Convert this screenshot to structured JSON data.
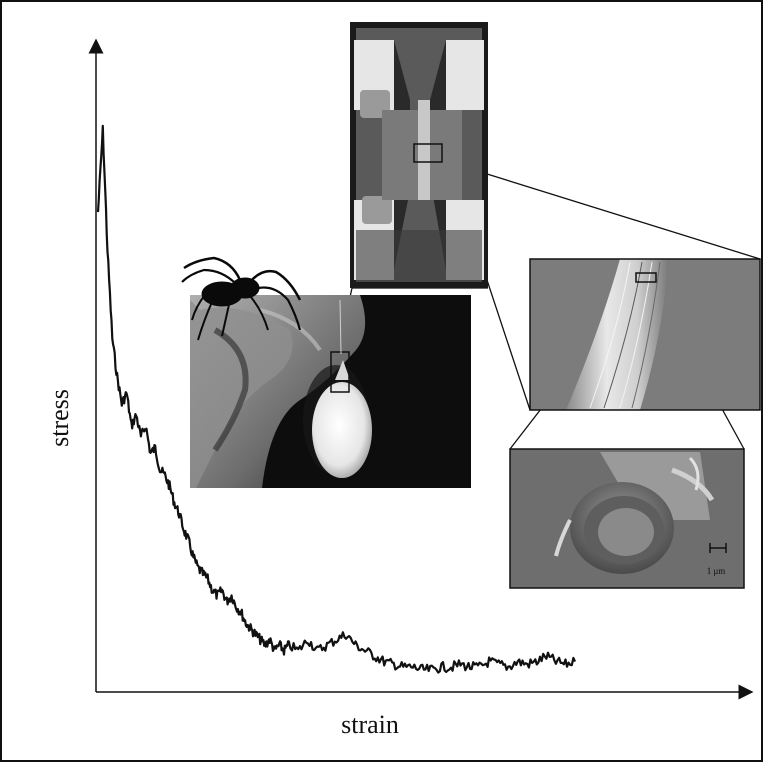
{
  "figure": {
    "x_axis_label": "strain",
    "y_axis_label": "stress",
    "scale_bar_label": "1 μm"
  },
  "chart_data": {
    "type": "line",
    "xlabel": "strain",
    "ylabel": "stress",
    "series": [
      {
        "x": [
          0.0,
          0.01,
          0.02,
          0.03,
          0.04,
          0.05,
          0.06,
          0.07,
          0.08,
          0.09,
          0.1,
          0.11,
          0.12,
          0.13,
          0.14,
          0.15,
          0.16,
          0.17,
          0.18,
          0.19,
          0.2,
          0.21,
          0.22,
          0.23,
          0.24,
          0.25,
          0.26,
          0.27,
          0.28,
          0.29,
          0.3,
          0.31,
          0.32,
          0.33,
          0.34,
          0.35,
          0.36,
          0.37,
          0.38,
          0.39,
          0.4,
          0.42,
          0.44,
          0.46,
          0.48,
          0.5,
          0.52,
          0.54,
          0.56,
          0.58,
          0.6,
          0.62,
          0.64,
          0.66,
          0.68,
          0.7,
          0.72,
          0.74,
          0.76,
          0.78,
          0.8,
          0.82,
          0.84,
          0.86,
          0.88,
          0.9,
          0.92,
          0.94,
          0.96,
          0.98,
          1.0
        ],
        "y": [
          0.85,
          1.0,
          0.78,
          0.62,
          0.55,
          0.5,
          0.52,
          0.46,
          0.48,
          0.44,
          0.46,
          0.41,
          0.42,
          0.38,
          0.37,
          0.35,
          0.32,
          0.3,
          0.27,
          0.25,
          0.22,
          0.2,
          0.19,
          0.18,
          0.16,
          0.15,
          0.16,
          0.14,
          0.15,
          0.13,
          0.12,
          0.1,
          0.09,
          0.08,
          0.07,
          0.06,
          0.07,
          0.05,
          0.06,
          0.05,
          0.06,
          0.05,
          0.07,
          0.05,
          0.06,
          0.07,
          0.08,
          0.06,
          0.05,
          0.04,
          0.03,
          0.025,
          0.02,
          0.02,
          0.015,
          0.015,
          0.02,
          0.02,
          0.025,
          0.02,
          0.02,
          0.03,
          0.025,
          0.02,
          0.03,
          0.025,
          0.03,
          0.04,
          0.03,
          0.025,
          0.03
        ]
      }
    ]
  }
}
